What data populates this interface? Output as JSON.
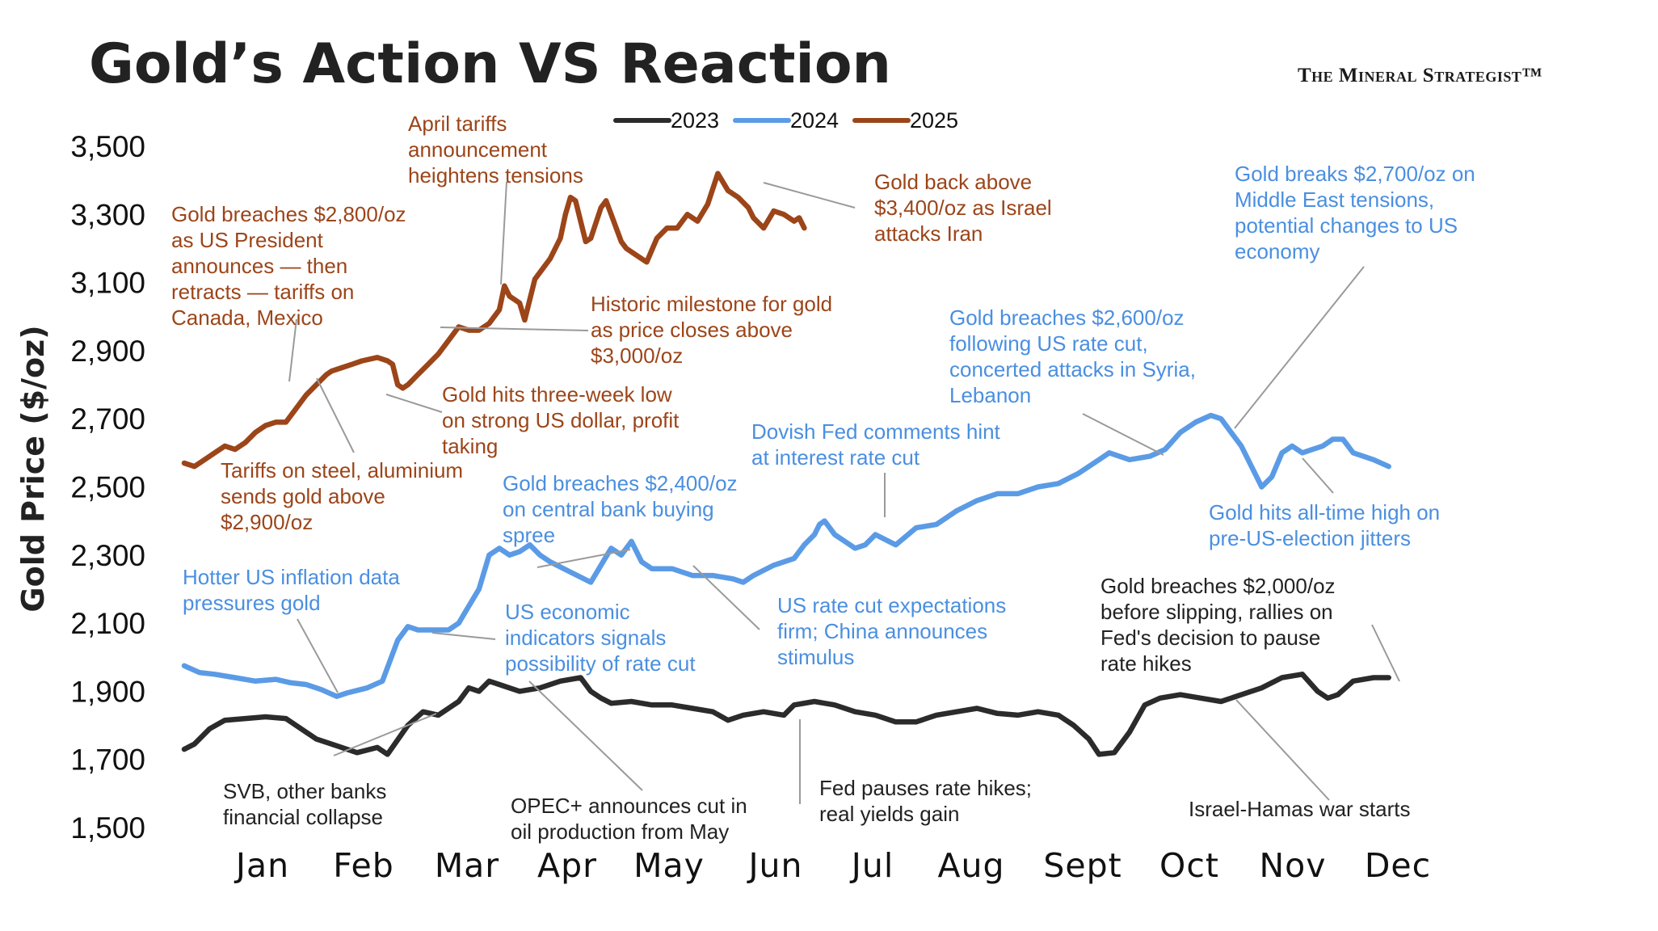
{
  "title": "Gold’s Action VS Reaction",
  "brand": "The Mineral Strategist™",
  "colors": {
    "s2023": "#2b2b2b",
    "s2024": "#5b9be6",
    "s2025": "#9c4519",
    "leader": "#9a9a9a"
  },
  "chart_data": {
    "type": "line",
    "title": "Gold’s Action VS Reaction",
    "ylabel": "Gold Price ($/oz)",
    "xlabel": "",
    "ylim": [
      1500,
      3500
    ],
    "yticks": [
      "3,500",
      "3,300",
      "3,100",
      "2,900",
      "2,700",
      "2,500",
      "2,300",
      "2,100",
      "1,900",
      "1,700",
      "1,500"
    ],
    "ytick_values": [
      3500,
      3300,
      3100,
      2900,
      2700,
      2500,
      2300,
      2100,
      1900,
      1700,
      1500
    ],
    "months": [
      "Jan",
      "Feb",
      "Mar",
      "Apr",
      "May",
      "Jun",
      "Jul",
      "Aug",
      "Sept",
      "Oct",
      "Nov",
      "Dec"
    ],
    "legend_placement": "top-center",
    "series": [
      {
        "name": "2023",
        "points": [
          [
            0.0,
            1730
          ],
          [
            0.1,
            1745
          ],
          [
            0.25,
            1790
          ],
          [
            0.4,
            1815
          ],
          [
            0.6,
            1820
          ],
          [
            0.8,
            1825
          ],
          [
            1.0,
            1820
          ],
          [
            1.15,
            1790
          ],
          [
            1.3,
            1760
          ],
          [
            1.5,
            1740
          ],
          [
            1.7,
            1720
          ],
          [
            1.9,
            1735
          ],
          [
            2.0,
            1715
          ],
          [
            2.2,
            1800
          ],
          [
            2.35,
            1840
          ],
          [
            2.5,
            1830
          ],
          [
            2.7,
            1870
          ],
          [
            2.8,
            1910
          ],
          [
            2.9,
            1900
          ],
          [
            3.0,
            1930
          ],
          [
            3.1,
            1920
          ],
          [
            3.3,
            1900
          ],
          [
            3.5,
            1910
          ],
          [
            3.7,
            1930
          ],
          [
            3.9,
            1940
          ],
          [
            4.0,
            1900
          ],
          [
            4.1,
            1880
          ],
          [
            4.2,
            1865
          ],
          [
            4.4,
            1870
          ],
          [
            4.6,
            1860
          ],
          [
            4.8,
            1860
          ],
          [
            5.0,
            1850
          ],
          [
            5.2,
            1840
          ],
          [
            5.35,
            1815
          ],
          [
            5.5,
            1830
          ],
          [
            5.7,
            1840
          ],
          [
            5.9,
            1830
          ],
          [
            6.0,
            1860
          ],
          [
            6.2,
            1870
          ],
          [
            6.4,
            1860
          ],
          [
            6.6,
            1840
          ],
          [
            6.8,
            1830
          ],
          [
            7.0,
            1810
          ],
          [
            7.2,
            1810
          ],
          [
            7.4,
            1830
          ],
          [
            7.6,
            1840
          ],
          [
            7.8,
            1850
          ],
          [
            8.0,
            1835
          ],
          [
            8.2,
            1830
          ],
          [
            8.4,
            1840
          ],
          [
            8.6,
            1830
          ],
          [
            8.75,
            1800
          ],
          [
            8.9,
            1760
          ],
          [
            9.0,
            1715
          ],
          [
            9.15,
            1720
          ],
          [
            9.3,
            1780
          ],
          [
            9.45,
            1860
          ],
          [
            9.6,
            1880
          ],
          [
            9.8,
            1890
          ],
          [
            10.0,
            1880
          ],
          [
            10.2,
            1870
          ],
          [
            10.4,
            1890
          ],
          [
            10.6,
            1910
          ],
          [
            10.8,
            1940
          ],
          [
            11.0,
            1950
          ],
          [
            11.15,
            1900
          ],
          [
            11.25,
            1880
          ],
          [
            11.35,
            1890
          ],
          [
            11.5,
            1930
          ],
          [
            11.7,
            1940
          ],
          [
            11.85,
            1940
          ]
        ]
      },
      {
        "name": "2024",
        "points": [
          [
            0.0,
            1975
          ],
          [
            0.15,
            1955
          ],
          [
            0.3,
            1950
          ],
          [
            0.5,
            1940
          ],
          [
            0.7,
            1930
          ],
          [
            0.9,
            1935
          ],
          [
            1.05,
            1925
          ],
          [
            1.2,
            1920
          ],
          [
            1.35,
            1905
          ],
          [
            1.5,
            1885
          ],
          [
            1.6,
            1895
          ],
          [
            1.8,
            1910
          ],
          [
            1.95,
            1930
          ],
          [
            2.1,
            2050
          ],
          [
            2.2,
            2090
          ],
          [
            2.3,
            2080
          ],
          [
            2.45,
            2080
          ],
          [
            2.6,
            2080
          ],
          [
            2.7,
            2100
          ],
          [
            2.8,
            2150
          ],
          [
            2.9,
            2200
          ],
          [
            3.0,
            2300
          ],
          [
            3.1,
            2320
          ],
          [
            3.2,
            2300
          ],
          [
            3.3,
            2310
          ],
          [
            3.4,
            2330
          ],
          [
            3.5,
            2300
          ],
          [
            3.6,
            2280
          ],
          [
            3.8,
            2250
          ],
          [
            4.0,
            2220
          ],
          [
            4.1,
            2270
          ],
          [
            4.2,
            2320
          ],
          [
            4.3,
            2300
          ],
          [
            4.4,
            2340
          ],
          [
            4.5,
            2280
          ],
          [
            4.6,
            2260
          ],
          [
            4.8,
            2260
          ],
          [
            5.0,
            2240
          ],
          [
            5.2,
            2240
          ],
          [
            5.4,
            2230
          ],
          [
            5.5,
            2220
          ],
          [
            5.6,
            2240
          ],
          [
            5.8,
            2270
          ],
          [
            6.0,
            2290
          ],
          [
            6.1,
            2330
          ],
          [
            6.2,
            2360
          ],
          [
            6.25,
            2390
          ],
          [
            6.3,
            2400
          ],
          [
            6.4,
            2360
          ],
          [
            6.5,
            2340
          ],
          [
            6.6,
            2320
          ],
          [
            6.7,
            2330
          ],
          [
            6.8,
            2360
          ],
          [
            7.0,
            2330
          ],
          [
            7.2,
            2380
          ],
          [
            7.4,
            2390
          ],
          [
            7.6,
            2430
          ],
          [
            7.8,
            2460
          ],
          [
            8.0,
            2480
          ],
          [
            8.2,
            2480
          ],
          [
            8.4,
            2500
          ],
          [
            8.6,
            2510
          ],
          [
            8.8,
            2540
          ],
          [
            9.0,
            2580
          ],
          [
            9.1,
            2600
          ],
          [
            9.3,
            2580
          ],
          [
            9.5,
            2590
          ],
          [
            9.65,
            2610
          ],
          [
            9.8,
            2660
          ],
          [
            9.95,
            2690
          ],
          [
            10.1,
            2710
          ],
          [
            10.2,
            2700
          ],
          [
            10.3,
            2660
          ],
          [
            10.4,
            2620
          ],
          [
            10.5,
            2560
          ],
          [
            10.6,
            2500
          ],
          [
            10.7,
            2530
          ],
          [
            10.8,
            2600
          ],
          [
            10.9,
            2620
          ],
          [
            11.0,
            2600
          ],
          [
            11.1,
            2610
          ],
          [
            11.2,
            2620
          ],
          [
            11.3,
            2640
          ],
          [
            11.4,
            2640
          ],
          [
            11.5,
            2600
          ],
          [
            11.6,
            2590
          ],
          [
            11.7,
            2580
          ],
          [
            11.85,
            2560
          ]
        ]
      },
      {
        "name": "2025",
        "points": [
          [
            0.0,
            2570
          ],
          [
            0.1,
            2560
          ],
          [
            0.2,
            2580
          ],
          [
            0.3,
            2600
          ],
          [
            0.4,
            2620
          ],
          [
            0.5,
            2610
          ],
          [
            0.6,
            2630
          ],
          [
            0.7,
            2660
          ],
          [
            0.8,
            2680
          ],
          [
            0.9,
            2690
          ],
          [
            1.0,
            2690
          ],
          [
            1.1,
            2730
          ],
          [
            1.2,
            2770
          ],
          [
            1.3,
            2800
          ],
          [
            1.4,
            2830
          ],
          [
            1.45,
            2840
          ],
          [
            1.55,
            2850
          ],
          [
            1.65,
            2860
          ],
          [
            1.75,
            2870
          ],
          [
            1.9,
            2880
          ],
          [
            2.0,
            2870
          ],
          [
            2.05,
            2860
          ],
          [
            2.1,
            2800
          ],
          [
            2.15,
            2790
          ],
          [
            2.2,
            2800
          ],
          [
            2.3,
            2830
          ],
          [
            2.4,
            2860
          ],
          [
            2.5,
            2890
          ],
          [
            2.6,
            2930
          ],
          [
            2.7,
            2970
          ],
          [
            2.8,
            2960
          ],
          [
            2.9,
            2960
          ],
          [
            3.0,
            2980
          ],
          [
            3.1,
            3020
          ],
          [
            3.15,
            3090
          ],
          [
            3.2,
            3060
          ],
          [
            3.3,
            3040
          ],
          [
            3.35,
            2990
          ],
          [
            3.4,
            3050
          ],
          [
            3.45,
            3110
          ],
          [
            3.5,
            3130
          ],
          [
            3.6,
            3170
          ],
          [
            3.7,
            3230
          ],
          [
            3.75,
            3300
          ],
          [
            3.8,
            3350
          ],
          [
            3.85,
            3340
          ],
          [
            3.9,
            3280
          ],
          [
            3.95,
            3220
          ],
          [
            4.0,
            3230
          ],
          [
            4.1,
            3320
          ],
          [
            4.15,
            3340
          ],
          [
            4.2,
            3300
          ],
          [
            4.3,
            3220
          ],
          [
            4.35,
            3200
          ],
          [
            4.45,
            3180
          ],
          [
            4.55,
            3160
          ],
          [
            4.65,
            3230
          ],
          [
            4.75,
            3260
          ],
          [
            4.85,
            3260
          ],
          [
            4.95,
            3300
          ],
          [
            5.05,
            3280
          ],
          [
            5.15,
            3330
          ],
          [
            5.25,
            3420
          ],
          [
            5.35,
            3370
          ],
          [
            5.45,
            3350
          ],
          [
            5.55,
            3320
          ],
          [
            5.6,
            3290
          ],
          [
            5.7,
            3260
          ],
          [
            5.8,
            3310
          ],
          [
            5.9,
            3300
          ],
          [
            6.0,
            3280
          ],
          [
            6.05,
            3290
          ],
          [
            6.1,
            3260
          ]
        ]
      }
    ],
    "annotations": [
      {
        "year": "2025",
        "text": [
          "April tariffs",
          "announcement",
          "heightens tensions"
        ]
      },
      {
        "year": "2025",
        "text": [
          "Gold back above",
          "$3,400/oz as Israel",
          "attacks Iran"
        ]
      },
      {
        "year": "2025",
        "text": [
          "Gold breaches $2,800/oz",
          "as US President",
          "announces — then",
          "retracts — tariffs on",
          "Canada, Mexico"
        ]
      },
      {
        "year": "2025",
        "text": [
          "Historic milestone for gold",
          "as price closes above",
          "$3,000/oz"
        ]
      },
      {
        "year": "2025",
        "text": [
          "Gold hits three-week low",
          "on strong US dollar, profit",
          "taking"
        ]
      },
      {
        "year": "2025",
        "text": [
          "Tariffs on steel, aluminium",
          "sends gold above",
          "$2,900/oz"
        ]
      },
      {
        "year": "2024",
        "text": [
          "Gold breaks $2,700/oz on",
          "Middle East tensions,",
          "potential changes to US",
          "economy"
        ]
      },
      {
        "year": "2024",
        "text": [
          "Gold breaches $2,600/oz",
          "following US rate cut,",
          "concerted attacks in Syria,",
          "Lebanon"
        ]
      },
      {
        "year": "2024",
        "text": [
          "Dovish Fed comments hint",
          "at interest rate cut"
        ]
      },
      {
        "year": "2024",
        "text": [
          "Gold breaches $2,400/oz",
          "on central bank buying",
          "spree"
        ]
      },
      {
        "year": "2024",
        "text": [
          "Gold hits all-time high on",
          "pre-US-election jitters"
        ]
      },
      {
        "year": "2024",
        "text": [
          "Hotter US inflation data",
          "pressures gold"
        ]
      },
      {
        "year": "2024",
        "text": [
          "US economic",
          "indicators signals",
          "possibility of rate cut"
        ]
      },
      {
        "year": "2024",
        "text": [
          "US rate cut expectations",
          "firm; China announces",
          "stimulus"
        ]
      },
      {
        "year": "2023",
        "text": [
          "Gold breaches $2,000/oz",
          "before slipping, rallies on",
          "Fed's decision to pause",
          "rate hikes"
        ]
      },
      {
        "year": "2023",
        "text": [
          "SVB, other banks",
          "financial collapse"
        ]
      },
      {
        "year": "2023",
        "text": [
          "OPEC+ announces cut in",
          "oil production from May"
        ]
      },
      {
        "year": "2023",
        "text": [
          "Fed pauses rate hikes;",
          "real yields gain"
        ]
      },
      {
        "year": "2023",
        "text": [
          "Israel-Hamas war starts"
        ]
      }
    ]
  }
}
